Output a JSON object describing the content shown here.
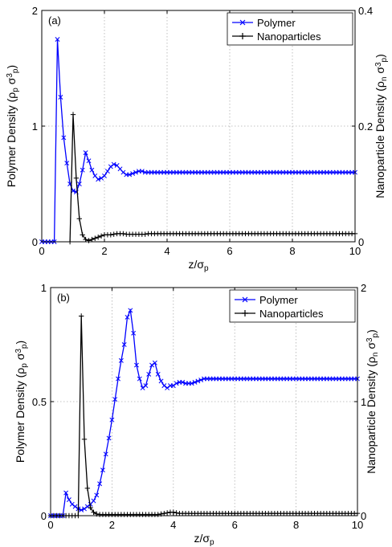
{
  "chart_data": [
    {
      "type": "line",
      "panel_label": "(a)",
      "xlabel_main": "z/σ",
      "xlabel_sub": "p",
      "ylabel_left": "Polymer Density (ρ",
      "ylabel_left_sub1": "p",
      "ylabel_left_mid": " σ",
      "ylabel_left_sup": "3",
      "ylabel_left_sub2": "p",
      "ylabel_left_end": ")",
      "ylabel_right": "Nanoparticle Density (ρ",
      "ylabel_right_sub1": "n",
      "ylabel_right_mid": " σ",
      "ylabel_right_sup": "3",
      "ylabel_right_sub2": "p",
      "ylabel_right_end": ")",
      "xlim": [
        0,
        10
      ],
      "ylim_left": [
        0,
        2
      ],
      "ylim_right": [
        0,
        0.4
      ],
      "xticks": [
        "0",
        "2",
        "4",
        "6",
        "8",
        "10"
      ],
      "yticks_left": [
        "0",
        "1",
        "2"
      ],
      "yticks_right": [
        "0",
        "0.2",
        "0.4"
      ],
      "grid": true,
      "legend_position": "top-right",
      "series": [
        {
          "name": "Polymer",
          "axis": "left",
          "color": "#0000ff",
          "marker": "x",
          "x": [
            0,
            0.1,
            0.2,
            0.3,
            0.4,
            0.5,
            0.6,
            0.7,
            0.8,
            0.9,
            1.0,
            1.1,
            1.2,
            1.3,
            1.4,
            1.5,
            1.6,
            1.7,
            1.8,
            1.9,
            2.0,
            2.1,
            2.2,
            2.3,
            2.4,
            2.5,
            2.6,
            2.7,
            2.8,
            2.9,
            3.0,
            3.1,
            3.2,
            3.3,
            3.4,
            3.5,
            3.6,
            3.7,
            3.8,
            3.9,
            4.0,
            4.1,
            4.2,
            4.3,
            4.4,
            4.5,
            4.6,
            4.7,
            4.8,
            4.9,
            5.0,
            5.1,
            5.2,
            5.3,
            5.4,
            5.5,
            5.6,
            5.7,
            5.8,
            5.9,
            6.0,
            6.1,
            6.2,
            6.3,
            6.4,
            6.5,
            6.6,
            6.7,
            6.8,
            6.9,
            7.0,
            7.1,
            7.2,
            7.3,
            7.4,
            7.5,
            7.6,
            7.7,
            7.8,
            7.9,
            8.0,
            8.1,
            8.2,
            8.3,
            8.4,
            8.5,
            8.6,
            8.7,
            8.8,
            8.9,
            9.0,
            9.1,
            9.2,
            9.3,
            9.4,
            9.5,
            9.6,
            9.7,
            9.8,
            9.9,
            10.0
          ],
          "y": [
            0,
            0,
            0,
            0,
            0,
            1.75,
            1.25,
            0.9,
            0.68,
            0.5,
            0.44,
            0.43,
            0.5,
            0.62,
            0.77,
            0.7,
            0.62,
            0.57,
            0.54,
            0.55,
            0.57,
            0.61,
            0.65,
            0.67,
            0.66,
            0.63,
            0.6,
            0.58,
            0.58,
            0.59,
            0.6,
            0.61,
            0.61,
            0.6,
            0.6,
            0.6,
            0.6,
            0.6,
            0.6,
            0.6,
            0.6,
            0.6,
            0.6,
            0.6,
            0.6,
            0.6,
            0.6,
            0.6,
            0.6,
            0.6,
            0.6,
            0.6,
            0.6,
            0.6,
            0.6,
            0.6,
            0.6,
            0.6,
            0.6,
            0.6,
            0.6,
            0.6,
            0.6,
            0.6,
            0.6,
            0.6,
            0.6,
            0.6,
            0.6,
            0.6,
            0.6,
            0.6,
            0.6,
            0.6,
            0.6,
            0.6,
            0.6,
            0.6,
            0.6,
            0.6,
            0.6,
            0.6,
            0.6,
            0.6,
            0.6,
            0.6,
            0.6,
            0.6,
            0.6,
            0.6,
            0.6,
            0.6,
            0.6,
            0.6,
            0.6,
            0.6,
            0.6,
            0.6,
            0.6,
            0.6,
            0.6
          ]
        },
        {
          "name": "Nanoparticles",
          "axis": "right",
          "color": "#000000",
          "marker": "+",
          "x": [
            0.9,
            1.0,
            1.1,
            1.2,
            1.3,
            1.4,
            1.5,
            1.6,
            1.7,
            1.8,
            1.9,
            2.0,
            2.1,
            2.2,
            2.3,
            2.4,
            2.5,
            2.6,
            2.7,
            2.8,
            2.9,
            3.0,
            3.1,
            3.2,
            3.3,
            3.4,
            3.5,
            3.6,
            3.7,
            3.8,
            3.9,
            4.0,
            4.1,
            4.2,
            4.3,
            4.4,
            4.5,
            4.6,
            4.7,
            4.8,
            4.9,
            5.0,
            5.1,
            5.2,
            5.3,
            5.4,
            5.5,
            5.6,
            5.7,
            5.8,
            5.9,
            6.0,
            6.1,
            6.2,
            6.3,
            6.4,
            6.5,
            6.6,
            6.7,
            6.8,
            6.9,
            7.0,
            7.1,
            7.2,
            7.3,
            7.4,
            7.5,
            7.6,
            7.7,
            7.8,
            7.9,
            8.0,
            8.1,
            8.2,
            8.3,
            8.4,
            8.5,
            8.6,
            8.7,
            8.8,
            8.9,
            9.0,
            9.1,
            9.2,
            9.3,
            9.4,
            9.5,
            9.6,
            9.7,
            9.8,
            9.9,
            10.0
          ],
          "y": [
            0,
            0.22,
            0.11,
            0.04,
            0.012,
            0.004,
            0.002,
            0.004,
            0.006,
            0.008,
            0.01,
            0.012,
            0.012,
            0.012,
            0.013,
            0.014,
            0.014,
            0.014,
            0.013,
            0.013,
            0.013,
            0.013,
            0.013,
            0.013,
            0.013,
            0.014,
            0.014,
            0.014,
            0.014,
            0.014,
            0.014,
            0.014,
            0.014,
            0.014,
            0.014,
            0.014,
            0.014,
            0.014,
            0.014,
            0.014,
            0.014,
            0.014,
            0.014,
            0.014,
            0.014,
            0.014,
            0.014,
            0.014,
            0.014,
            0.014,
            0.014,
            0.014,
            0.014,
            0.014,
            0.014,
            0.014,
            0.014,
            0.014,
            0.014,
            0.014,
            0.014,
            0.014,
            0.014,
            0.014,
            0.014,
            0.014,
            0.014,
            0.014,
            0.014,
            0.014,
            0.014,
            0.014,
            0.014,
            0.014,
            0.014,
            0.014,
            0.014,
            0.014,
            0.014,
            0.014,
            0.014,
            0.014,
            0.014,
            0.014,
            0.014,
            0.014,
            0.014,
            0.014,
            0.014,
            0.014,
            0.014,
            0.014
          ]
        }
      ]
    },
    {
      "type": "line",
      "panel_label": "(b)",
      "xlabel_main": "z/σ",
      "xlabel_sub": "p",
      "ylabel_left": "Polymer Density (ρ",
      "ylabel_left_sub1": "p",
      "ylabel_left_mid": " σ",
      "ylabel_left_sup": "3",
      "ylabel_left_sub2": "p",
      "ylabel_left_end": ")",
      "ylabel_right": "Nanoparticle Density (ρ",
      "ylabel_right_sub1": "n",
      "ylabel_right_mid": " σ",
      "ylabel_right_sup": "3",
      "ylabel_right_sub2": "p",
      "ylabel_right_end": ")",
      "xlim": [
        0,
        10
      ],
      "ylim_left": [
        0,
        1
      ],
      "ylim_right": [
        0,
        2
      ],
      "xticks": [
        "0",
        "2",
        "4",
        "6",
        "8",
        "10"
      ],
      "yticks_left": [
        "0",
        "0.5",
        "1"
      ],
      "yticks_right": [
        "0",
        "1",
        "2"
      ],
      "grid": true,
      "legend_position": "top-right",
      "series": [
        {
          "name": "Polymer",
          "axis": "left",
          "color": "#0000ff",
          "marker": "x",
          "x": [
            0,
            0.1,
            0.2,
            0.3,
            0.4,
            0.5,
            0.6,
            0.7,
            0.8,
            0.9,
            1.0,
            1.1,
            1.2,
            1.3,
            1.4,
            1.5,
            1.6,
            1.7,
            1.8,
            1.9,
            2.0,
            2.1,
            2.2,
            2.3,
            2.4,
            2.5,
            2.6,
            2.7,
            2.8,
            2.9,
            3.0,
            3.1,
            3.2,
            3.3,
            3.4,
            3.5,
            3.6,
            3.7,
            3.8,
            3.9,
            4.0,
            4.1,
            4.2,
            4.3,
            4.4,
            4.5,
            4.6,
            4.7,
            4.8,
            4.9,
            5.0,
            5.1,
            5.2,
            5.3,
            5.4,
            5.5,
            5.6,
            5.7,
            5.8,
            5.9,
            6.0,
            6.1,
            6.2,
            6.3,
            6.4,
            6.5,
            6.6,
            6.7,
            6.8,
            6.9,
            7.0,
            7.1,
            7.2,
            7.3,
            7.4,
            7.5,
            7.6,
            7.7,
            7.8,
            7.9,
            8.0,
            8.1,
            8.2,
            8.3,
            8.4,
            8.5,
            8.6,
            8.7,
            8.8,
            8.9,
            9.0,
            9.1,
            9.2,
            9.3,
            9.4,
            9.5,
            9.6,
            9.7,
            9.8,
            9.9,
            10.0
          ],
          "y": [
            0,
            0,
            0,
            0,
            0,
            0.1,
            0.07,
            0.05,
            0.04,
            0.03,
            0.025,
            0.03,
            0.04,
            0.05,
            0.065,
            0.09,
            0.14,
            0.2,
            0.27,
            0.34,
            0.42,
            0.51,
            0.6,
            0.68,
            0.75,
            0.87,
            0.9,
            0.8,
            0.66,
            0.6,
            0.56,
            0.57,
            0.62,
            0.66,
            0.67,
            0.62,
            0.59,
            0.57,
            0.56,
            0.57,
            0.57,
            0.58,
            0.585,
            0.585,
            0.58,
            0.58,
            0.58,
            0.585,
            0.59,
            0.595,
            0.6,
            0.6,
            0.6,
            0.6,
            0.6,
            0.6,
            0.6,
            0.6,
            0.6,
            0.6,
            0.6,
            0.6,
            0.6,
            0.6,
            0.6,
            0.6,
            0.6,
            0.6,
            0.6,
            0.6,
            0.6,
            0.6,
            0.6,
            0.6,
            0.6,
            0.6,
            0.6,
            0.6,
            0.6,
            0.6,
            0.6,
            0.6,
            0.6,
            0.6,
            0.6,
            0.6,
            0.6,
            0.6,
            0.6,
            0.6,
            0.6,
            0.6,
            0.6,
            0.6,
            0.6,
            0.6,
            0.6,
            0.6,
            0.6,
            0.6,
            0.6
          ]
        },
        {
          "name": "Nanoparticles",
          "axis": "right",
          "color": "#000000",
          "marker": "+",
          "x": [
            0,
            0.1,
            0.2,
            0.3,
            0.4,
            0.5,
            0.6,
            0.7,
            0.8,
            0.9,
            1.0,
            1.1,
            1.2,
            1.3,
            1.4,
            1.5,
            1.6,
            1.7,
            1.8,
            1.9,
            2.0,
            2.1,
            2.2,
            2.3,
            2.4,
            2.5,
            2.6,
            2.7,
            2.8,
            2.9,
            3.0,
            3.1,
            3.2,
            3.3,
            3.4,
            3.5,
            3.6,
            3.7,
            3.8,
            3.9,
            4.0,
            4.1,
            4.2,
            4.3,
            4.4,
            4.5,
            4.6,
            4.7,
            4.8,
            4.9,
            5.0,
            5.1,
            5.2,
            5.3,
            5.4,
            5.5,
            5.6,
            5.7,
            5.8,
            5.9,
            6.0,
            6.1,
            6.2,
            6.3,
            6.4,
            6.5,
            6.6,
            6.7,
            6.8,
            6.9,
            7.0,
            7.1,
            7.2,
            7.3,
            7.4,
            7.5,
            7.6,
            7.7,
            7.8,
            7.9,
            8.0,
            8.1,
            8.2,
            8.3,
            8.4,
            8.5,
            8.6,
            8.7,
            8.8,
            8.9,
            9.0,
            9.1,
            9.2,
            9.3,
            9.4,
            9.5,
            9.6,
            9.7,
            9.8,
            9.9,
            10.0
          ],
          "y": [
            0,
            0,
            0,
            0,
            0,
            0,
            0,
            0,
            0,
            0,
            1.75,
            0.67,
            0.24,
            0.07,
            0.03,
            0.015,
            0.01,
            0.01,
            0.01,
            0.01,
            0.01,
            0.01,
            0.01,
            0.01,
            0.01,
            0.01,
            0.01,
            0.01,
            0.01,
            0.01,
            0.01,
            0.01,
            0.01,
            0.01,
            0.01,
            0.01,
            0.015,
            0.02,
            0.025,
            0.03,
            0.03,
            0.025,
            0.02,
            0.02,
            0.02,
            0.02,
            0.02,
            0.02,
            0.02,
            0.02,
            0.02,
            0.02,
            0.02,
            0.02,
            0.02,
            0.02,
            0.02,
            0.02,
            0.02,
            0.02,
            0.02,
            0.02,
            0.02,
            0.02,
            0.02,
            0.02,
            0.02,
            0.02,
            0.02,
            0.02,
            0.02,
            0.02,
            0.02,
            0.02,
            0.02,
            0.02,
            0.02,
            0.02,
            0.02,
            0.02,
            0.02,
            0.02,
            0.02,
            0.02,
            0.02,
            0.02,
            0.02,
            0.02,
            0.02,
            0.02,
            0.02,
            0.02,
            0.02,
            0.02,
            0.02,
            0.02,
            0.02,
            0.02,
            0.02,
            0.02,
            0.02
          ]
        }
      ]
    }
  ]
}
